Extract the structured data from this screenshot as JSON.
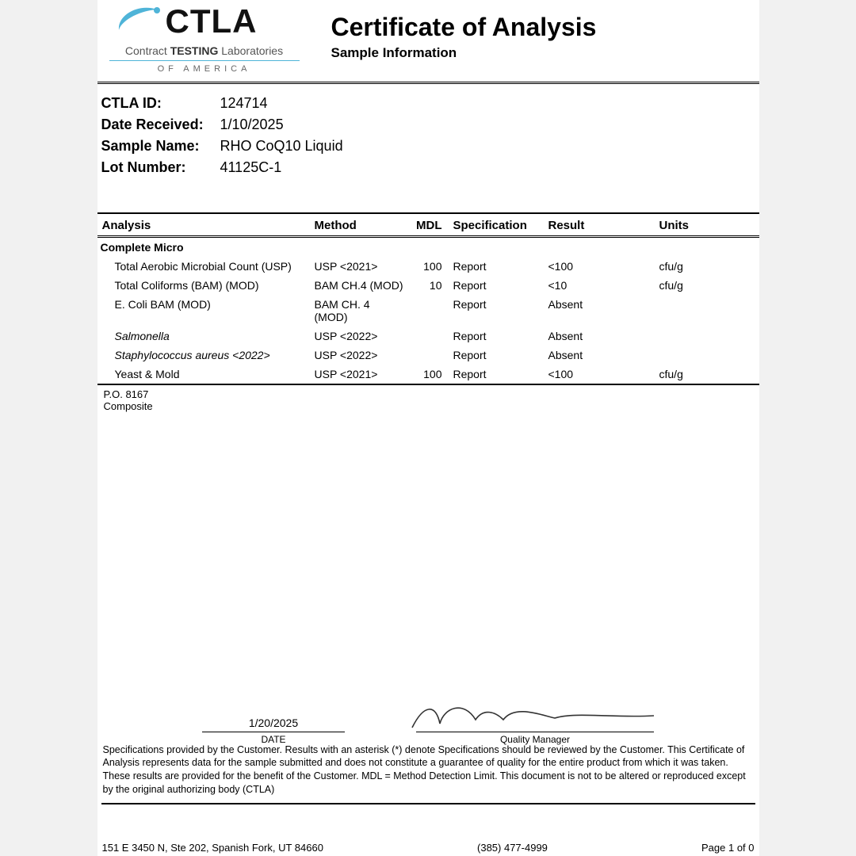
{
  "logo": {
    "main": "CTLA",
    "sub1_a": "Contract ",
    "sub1_b": "TESTING",
    "sub1_c": " Laboratories",
    "sub2": "OF AMERICA",
    "swoosh_color": "#4fb4d8"
  },
  "title": {
    "main": "Certificate of Analysis",
    "sub": "Sample Information"
  },
  "info": {
    "id_label": "CTLA ID:",
    "id_value": "124714",
    "date_label": "Date Received:",
    "date_value": "1/10/2025",
    "name_label": "Sample Name:",
    "name_value": "RHO CoQ10 Liquid",
    "lot_label": "Lot Number:",
    "lot_value": "41125C-1"
  },
  "table": {
    "headers": {
      "analysis": "Analysis",
      "method": "Method",
      "mdl": "MDL",
      "spec": "Specification",
      "result": "Result",
      "units": "Units"
    },
    "section": "Complete Micro",
    "rows": [
      {
        "name": "Total Aerobic Microbial Count (USP)",
        "method": "USP <2021>",
        "mdl": "100",
        "spec": "Report",
        "result": "<100",
        "units": "cfu/g",
        "italic": false
      },
      {
        "name": "Total Coliforms (BAM) (MOD)",
        "method": "BAM CH.4 (MOD)",
        "mdl": "10",
        "spec": "Report",
        "result": "<10",
        "units": "cfu/g",
        "italic": false
      },
      {
        "name": "E. Coli BAM (MOD)",
        "method": "BAM CH. 4 (MOD)",
        "mdl": "",
        "spec": "Report",
        "result": "Absent",
        "units": "",
        "italic": false
      },
      {
        "name": "Salmonella",
        "method": "USP <2022>",
        "mdl": "",
        "spec": "Report",
        "result": "Absent",
        "units": "",
        "italic": true
      },
      {
        "name": "Staphylococcus aureus <2022>",
        "method": "USP <2022>",
        "mdl": "",
        "spec": "Report",
        "result": "Absent",
        "units": "",
        "italic": true
      },
      {
        "name": "Yeast & Mold",
        "method": "USP <2021>",
        "mdl": "100",
        "spec": "Report",
        "result": "<100",
        "units": "cfu/g",
        "italic": false
      }
    ]
  },
  "po": {
    "line1": "P.O. 8167",
    "line2": "Composite"
  },
  "signature": {
    "date_value": "1/20/2025",
    "date_label": "DATE",
    "qm_label": "Quality Manager"
  },
  "disclaimer": "Specifications provided by the Customer. Results with an asterisk (*) denote Specifications should be reviewed by the Customer. This Certificate of Analysis represents data for the sample submitted and does not constitute a guarantee of quality for the entire product from which it was taken. These results are provided for the benefit of the Customer.  MDL = Method Detection Limit. This document is not to be altered or reproduced except by the original authorizing body (CTLA)",
  "footer": {
    "address": "151 E 3450 N, Ste 202, Spanish Fork, UT 84660",
    "phone": "(385) 477-4999",
    "page": "Page 1 of 0"
  },
  "colors": {
    "page_bg": "#ffffff",
    "body_bg": "#f1f1f1",
    "text": "#000000",
    "rule": "#000000"
  }
}
